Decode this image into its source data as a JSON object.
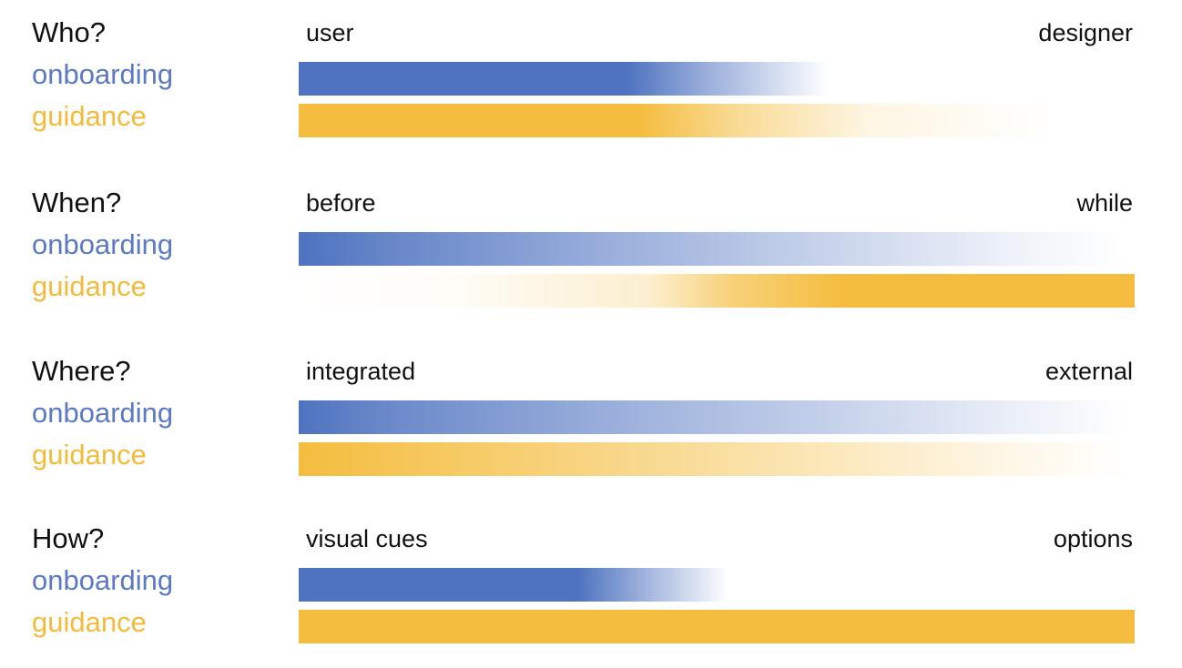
{
  "colors": {
    "onboarding": "#4f73c0",
    "guidance": "#f4bd3f",
    "text": "#111111"
  },
  "rows": [
    {
      "question": "Who?",
      "onboarding_label": "onboarding",
      "guidance_label": "guidance",
      "left_end": "user",
      "right_end": "designer"
    },
    {
      "question": "When?",
      "onboarding_label": "onboarding",
      "guidance_label": "guidance",
      "left_end": "before",
      "right_end": "while"
    },
    {
      "question": "Where?",
      "onboarding_label": "onboarding",
      "guidance_label": "guidance",
      "left_end": "integrated",
      "right_end": "external"
    },
    {
      "question": "How?",
      "onboarding_label": "onboarding",
      "guidance_label": "guidance",
      "left_end": "visual cues",
      "right_end": "options"
    }
  ]
}
